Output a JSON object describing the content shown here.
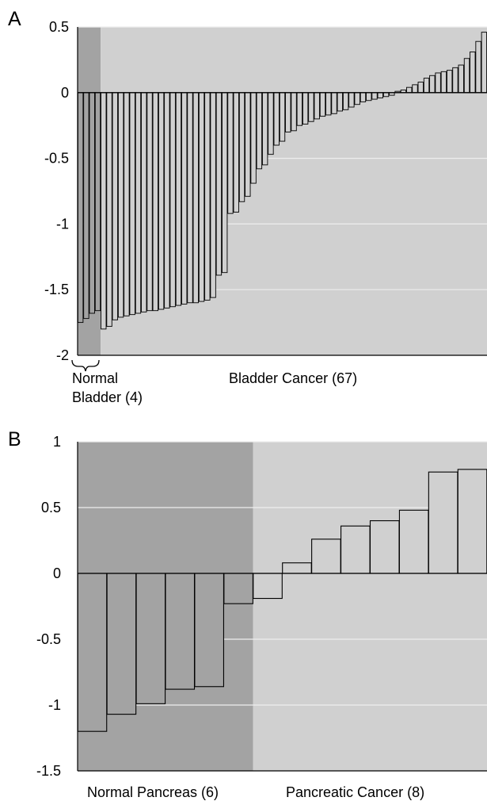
{
  "panels": [
    {
      "letter": "A",
      "ylim": [
        -2,
        0.5
      ],
      "yticks": [
        "0.5",
        "0",
        "-0.5",
        "-1",
        "-1.5",
        "-2"
      ],
      "groups": [
        {
          "label_lines": [
            "Normal",
            "Bladder (4)"
          ],
          "color": "#a3a3a3"
        },
        {
          "label_lines": [
            "Bladder Cancer (67)"
          ],
          "color": "#d0d0d0"
        }
      ]
    },
    {
      "letter": "B",
      "ylim": [
        -1.5,
        1
      ],
      "yticks": [
        "1",
        "0.5",
        "0",
        "-0.5",
        "-1",
        "-1.5"
      ],
      "groups": [
        {
          "label_lines": [
            "Normal Pancreas (6)"
          ],
          "color": "#a3a3a3"
        },
        {
          "label_lines": [
            "Pancreatic Cancer (8)"
          ],
          "color": "#d0d0d0"
        }
      ]
    }
  ],
  "chart_data": [
    {
      "type": "bar",
      "ylim": [
        -2,
        0.5
      ],
      "grid": true,
      "series": [
        {
          "group": "Normal Bladder (4)",
          "values": [
            -1.75,
            -1.72,
            -1.68,
            -1.66
          ]
        },
        {
          "group": "Bladder Cancer (67)",
          "values": [
            -1.8,
            -1.78,
            -1.73,
            -1.71,
            -1.7,
            -1.69,
            -1.68,
            -1.67,
            -1.66,
            -1.66,
            -1.65,
            -1.64,
            -1.63,
            -1.62,
            -1.61,
            -1.6,
            -1.6,
            -1.59,
            -1.58,
            -1.56,
            -1.39,
            -1.37,
            -0.92,
            -0.91,
            -0.83,
            -0.79,
            -0.69,
            -0.58,
            -0.55,
            -0.47,
            -0.4,
            -0.37,
            -0.3,
            -0.29,
            -0.25,
            -0.24,
            -0.22,
            -0.2,
            -0.18,
            -0.17,
            -0.16,
            -0.14,
            -0.13,
            -0.11,
            -0.09,
            -0.07,
            -0.06,
            -0.05,
            -0.04,
            -0.03,
            -0.02,
            0.01,
            0.02,
            0.04,
            0.06,
            0.08,
            0.11,
            0.13,
            0.15,
            0.16,
            0.17,
            0.19,
            0.21,
            0.26,
            0.31,
            0.39,
            0.46
          ]
        }
      ]
    },
    {
      "type": "bar",
      "ylim": [
        -1.5,
        1
      ],
      "grid": true,
      "series": [
        {
          "group": "Normal Pancreas (6)",
          "values": [
            -1.2,
            -1.07,
            -0.99,
            -0.88,
            -0.86,
            -0.23
          ]
        },
        {
          "group": "Pancreatic Cancer (8)",
          "values": [
            -0.19,
            0.08,
            0.26,
            0.36,
            0.4,
            0.48,
            0.77,
            0.79
          ]
        }
      ]
    }
  ]
}
